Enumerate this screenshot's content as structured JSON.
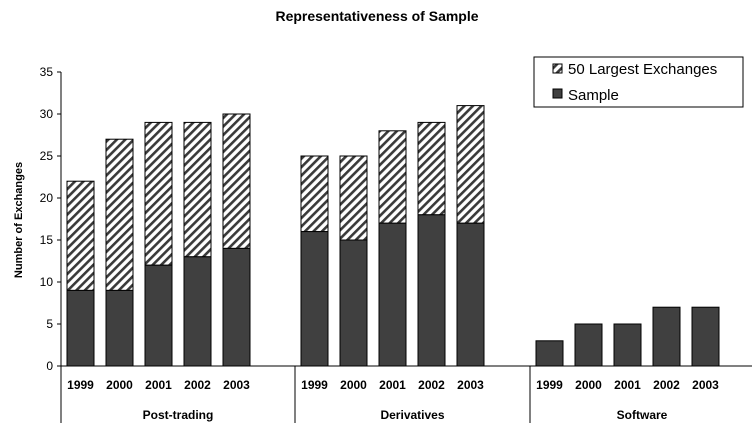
{
  "chart_data": {
    "type": "bar",
    "stacked": true,
    "title": "Representativeness of Sample",
    "ylabel": "Number of Exchanges",
    "xlabel": "",
    "ylim": [
      0,
      35
    ],
    "yticks": [
      "0",
      "5",
      "10",
      "15",
      "20",
      "25",
      "30",
      "35"
    ],
    "groups": [
      {
        "label": "Post-trading",
        "categories": [
          "1999",
          "2000",
          "2001",
          "2002",
          "2003"
        ],
        "sample": [
          9,
          9,
          12,
          13,
          14
        ],
        "largest": [
          22,
          27,
          29,
          29,
          30
        ]
      },
      {
        "label": "Derivatives",
        "categories": [
          "1999",
          "2000",
          "2001",
          "2002",
          "2003"
        ],
        "sample": [
          16,
          15,
          17,
          18,
          17
        ],
        "largest": [
          25,
          25,
          28,
          29,
          31
        ]
      },
      {
        "label": "Software",
        "categories": [
          "1999",
          "2000",
          "2001",
          "2002",
          "2003"
        ],
        "sample": [
          3,
          5,
          5,
          7,
          7
        ],
        "largest": [
          null,
          null,
          null,
          null,
          null
        ]
      }
    ],
    "series": [
      {
        "name": "50 Largest Exchanges",
        "pattern": "diagonal-hatch"
      },
      {
        "name": "Sample",
        "color": "#404040"
      }
    ],
    "legend_position": "top-right",
    "grid": false
  }
}
